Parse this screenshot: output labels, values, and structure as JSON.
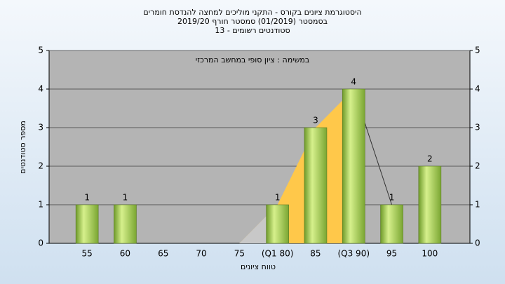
{
  "chart_data": {
    "type": "bar",
    "title": "היסטוגרמת ציונים בקורס - התקני מוליכים למחצה להנדסת חומרים",
    "subtitle": "בסמסטר  (01/2019)  סמסטר חורף 2019/20",
    "subtitle2": "סטודנטים רשומים - 13",
    "annotation": "במשימה : ציון סופי במחשב המרכזי",
    "x_label": "טווח ציונים",
    "y_label": "מספר סטודנטים",
    "categories": [
      "55",
      "60",
      "65",
      "70",
      "75",
      "(Q1 80)",
      "85",
      "(Q3 90)",
      "95",
      "100"
    ],
    "values": [
      1,
      1,
      0,
      0,
      0,
      1,
      3,
      4,
      1,
      2
    ],
    "color": "#9cc848",
    "ylim": [
      0,
      5
    ],
    "yticks": [
      0,
      1,
      2,
      3,
      4,
      5
    ],
    "y2lim": [
      0,
      5
    ],
    "y2ticks": [
      0,
      1,
      2,
      3,
      4,
      5
    ],
    "grid": true
  }
}
